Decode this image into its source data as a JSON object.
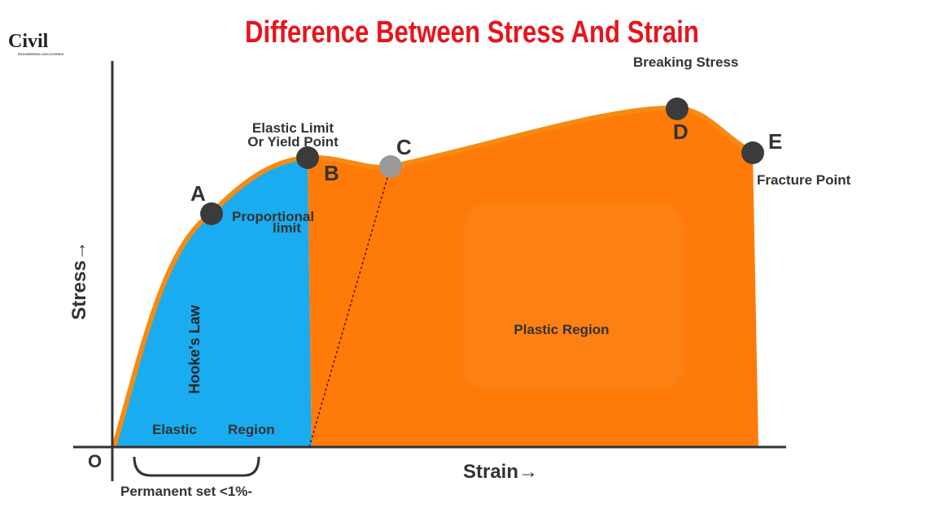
{
  "header": {
    "title": "Difference Between Stress And Strain",
    "logo": "Civil",
    "logo_sub": "ENGINEERING DISCOVERIES"
  },
  "axes": {
    "y_label": "Stress→",
    "x_label": "Strain→",
    "origin": "O"
  },
  "points": [
    {
      "letter": "A",
      "label": [
        "Proportional",
        "limit"
      ]
    },
    {
      "letter": "B",
      "label": [
        "Elastic Limit",
        "Or Yield Point"
      ]
    },
    {
      "letter": "C"
    },
    {
      "letter": "D",
      "label": [
        "Breaking Stress"
      ]
    },
    {
      "letter": "E",
      "label": [
        "Fracture Point"
      ]
    }
  ],
  "regions": {
    "hookes": "Hooke's Law",
    "elastic": [
      "Elastic",
      "Region"
    ],
    "plastic": "Plastic Region"
  },
  "note": "Permanent set <1%-"
}
